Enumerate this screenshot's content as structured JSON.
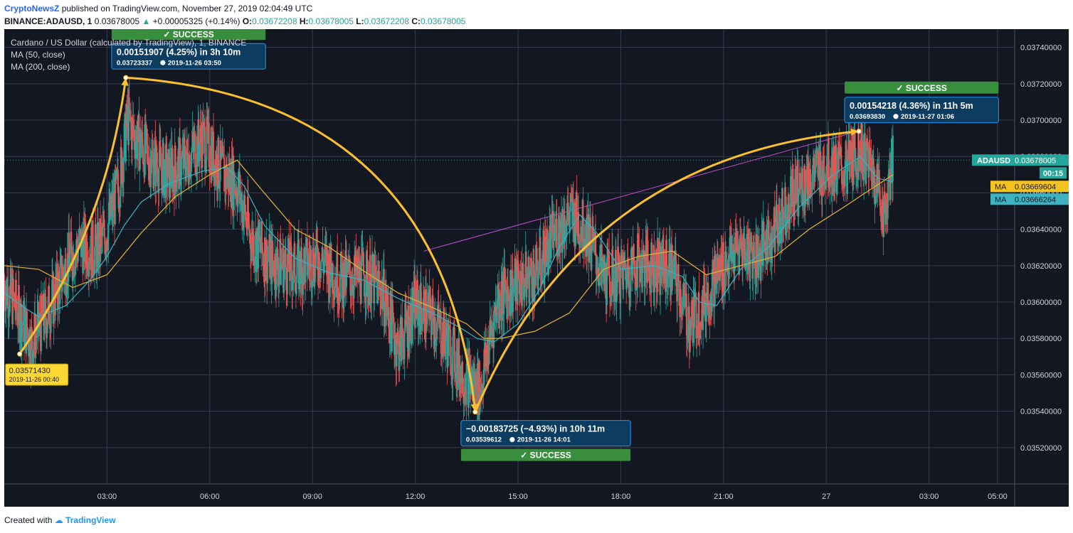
{
  "header": {
    "author": "CryptoNewsZ",
    "published_text": "published on TradingView.com, November 27, 2019 02:04:49 UTC",
    "symbol": "BINANCE:ADAUSD, 1",
    "last_price": "0.03678005",
    "change_arrow": "▲",
    "change": "+0.00005325 (+0.14%)",
    "o_label": "O:",
    "o": "0.03672208",
    "h_label": "H:",
    "h": "0.03678005",
    "l_label": "L:",
    "l": "0.03672208",
    "c_label": "C:",
    "c": "0.03678005"
  },
  "legend": {
    "title": "Cardano / US Dollar (calculated by TradingView), 1, BINANCE",
    "ma50": "MA (50, close)",
    "ma200": "MA (200, close)"
  },
  "chart_data": {
    "type": "candlestick",
    "y_ticks": [
      "0.03520000",
      "0.03540000",
      "0.03560000",
      "0.03580000",
      "0.03600000",
      "0.03620000",
      "0.03640000",
      "0.03660000",
      "0.03680000",
      "0.03700000",
      "0.03720000",
      "0.03740000"
    ],
    "ylim": [
      0.035,
      0.0375
    ],
    "x_ticks": [
      "03:00",
      "06:00",
      "09:00",
      "12:00",
      "15:00",
      "18:00",
      "21:00",
      "27",
      "03:00",
      "05:00"
    ],
    "x_hours": [
      3,
      6,
      9,
      12,
      15,
      18,
      21,
      24,
      27,
      29
    ],
    "xlim": [
      0.0,
      29.5
    ],
    "last_candle_hour": 25.95,
    "price_path": [
      [
        0.0,
        0.0361
      ],
      [
        0.4,
        0.03595
      ],
      [
        0.8,
        0.03578
      ],
      [
        1.0,
        0.03585
      ],
      [
        1.4,
        0.036
      ],
      [
        1.8,
        0.0362
      ],
      [
        2.2,
        0.03632
      ],
      [
        2.7,
        0.03628
      ],
      [
        3.0,
        0.0364
      ],
      [
        3.35,
        0.03665
      ],
      [
        3.6,
        0.037
      ],
      [
        3.85,
        0.0369
      ],
      [
        4.2,
        0.0368
      ],
      [
        4.8,
        0.0367
      ],
      [
        5.3,
        0.03678
      ],
      [
        5.8,
        0.0369
      ],
      [
        6.4,
        0.0367
      ],
      [
        6.8,
        0.03665
      ],
      [
        7.2,
        0.03635
      ],
      [
        7.8,
        0.03622
      ],
      [
        8.5,
        0.03618
      ],
      [
        9.2,
        0.03625
      ],
      [
        9.8,
        0.03612
      ],
      [
        10.5,
        0.03615
      ],
      [
        11.0,
        0.03608
      ],
      [
        11.5,
        0.03575
      ],
      [
        12.0,
        0.03598
      ],
      [
        12.5,
        0.03592
      ],
      [
        13.0,
        0.03576
      ],
      [
        13.4,
        0.0356
      ],
      [
        13.9,
        0.03552
      ],
      [
        14.4,
        0.03602
      ],
      [
        15.0,
        0.0361
      ],
      [
        15.5,
        0.03615
      ],
      [
        16.0,
        0.03635
      ],
      [
        16.5,
        0.03648
      ],
      [
        17.0,
        0.0364
      ],
      [
        17.5,
        0.03612
      ],
      [
        18.0,
        0.03615
      ],
      [
        18.5,
        0.03622
      ],
      [
        19.0,
        0.0362
      ],
      [
        19.5,
        0.03618
      ],
      [
        20.0,
        0.03588
      ],
      [
        20.4,
        0.03598
      ],
      [
        20.8,
        0.03615
      ],
      [
        21.5,
        0.0363
      ],
      [
        22.0,
        0.03625
      ],
      [
        22.5,
        0.0364
      ],
      [
        23.0,
        0.0366
      ],
      [
        23.5,
        0.03668
      ],
      [
        24.0,
        0.03675
      ],
      [
        24.5,
        0.03672
      ],
      [
        25.0,
        0.03685
      ],
      [
        25.4,
        0.0367
      ],
      [
        25.7,
        0.03648
      ],
      [
        25.95,
        0.03678
      ]
    ],
    "ma50_path": [
      [
        0.0,
        0.03605
      ],
      [
        0.5,
        0.03598
      ],
      [
        1.0,
        0.03592
      ],
      [
        1.8,
        0.03598
      ],
      [
        2.5,
        0.03612
      ],
      [
        3.0,
        0.03625
      ],
      [
        3.5,
        0.03642
      ],
      [
        4.0,
        0.03655
      ],
      [
        4.8,
        0.03665
      ],
      [
        5.8,
        0.03672
      ],
      [
        6.5,
        0.03674
      ],
      [
        7.0,
        0.03664
      ],
      [
        7.6,
        0.03642
      ],
      [
        8.5,
        0.03624
      ],
      [
        9.5,
        0.03616
      ],
      [
        10.5,
        0.03612
      ],
      [
        11.5,
        0.03602
      ],
      [
        12.5,
        0.03594
      ],
      [
        13.3,
        0.03586
      ],
      [
        13.8,
        0.0358
      ],
      [
        14.3,
        0.03578
      ],
      [
        15.0,
        0.03588
      ],
      [
        15.6,
        0.03606
      ],
      [
        16.2,
        0.0363
      ],
      [
        16.8,
        0.03648
      ],
      [
        17.3,
        0.03638
      ],
      [
        18.0,
        0.03618
      ],
      [
        19.0,
        0.0362
      ],
      [
        19.8,
        0.03614
      ],
      [
        20.3,
        0.036
      ],
      [
        20.8,
        0.03598
      ],
      [
        21.5,
        0.03618
      ],
      [
        22.3,
        0.0363
      ],
      [
        23.2,
        0.03652
      ],
      [
        24.2,
        0.0367
      ],
      [
        25.0,
        0.0368
      ],
      [
        25.5,
        0.03668
      ],
      [
        25.95,
        0.03666
      ]
    ],
    "ma200_path": [
      [
        0.0,
        0.0362
      ],
      [
        1.0,
        0.03618
      ],
      [
        2.0,
        0.03608
      ],
      [
        3.0,
        0.03615
      ],
      [
        4.0,
        0.03638
      ],
      [
        5.0,
        0.03658
      ],
      [
        6.0,
        0.0367
      ],
      [
        6.8,
        0.03678
      ],
      [
        7.5,
        0.03662
      ],
      [
        8.5,
        0.0364
      ],
      [
        9.5,
        0.0363
      ],
      [
        10.5,
        0.03617
      ],
      [
        11.5,
        0.03605
      ],
      [
        12.5,
        0.03597
      ],
      [
        13.5,
        0.03588
      ],
      [
        14.0,
        0.0358
      ],
      [
        14.5,
        0.0358
      ],
      [
        15.5,
        0.03584
      ],
      [
        16.5,
        0.03594
      ],
      [
        17.5,
        0.03618
      ],
      [
        18.5,
        0.03625
      ],
      [
        19.5,
        0.03628
      ],
      [
        20.5,
        0.03615
      ],
      [
        21.5,
        0.0362
      ],
      [
        22.5,
        0.03625
      ],
      [
        23.5,
        0.0364
      ],
      [
        24.5,
        0.03652
      ],
      [
        25.3,
        0.03662
      ],
      [
        25.95,
        0.0367
      ]
    ],
    "annotations": [
      {
        "from": [
          0.45,
          0.0357143
        ],
        "to": [
          3.55,
          0.03723337
        ],
        "text": "0.00151907 (4.25%) in 3h 10m",
        "subtext": "0.03723337",
        "time": "2019-11-26  03:50",
        "result": "✓ SUCCESS",
        "result_pos": "above"
      },
      {
        "from": [
          3.55,
          0.03723337
        ],
        "to": [
          13.75,
          0.03539612
        ],
        "text": "−0.00183725 (−4.93%) in 10h 11m",
        "subtext": "0.03539612",
        "time": "2019-11-26  14:01",
        "result": "✓ SUCCESS",
        "result_pos": "below"
      },
      {
        "from": [
          13.75,
          0.03539612
        ],
        "to": [
          24.95,
          0.0369383
        ],
        "text": "0.00154218 (4.36%) in 11h 5m",
        "subtext": "0.03693830",
        "time": "2019-11-27  01:06",
        "result": "✓ SUCCESS",
        "result_pos": "above"
      }
    ],
    "low_marker": {
      "value": "0.03571430",
      "time": "2019-11-26 00:40"
    },
    "trend_line": [
      [
        12.25,
        0.03628
      ],
      [
        24.95,
        0.03694
      ]
    ],
    "price_labels": [
      {
        "name": "ADAUSD",
        "value": "0.03678005",
        "level": 0.03678005,
        "color": "#26a69a"
      },
      {
        "name": "",
        "value": "00:15",
        "level": null,
        "color": "#26a69a"
      },
      {
        "name": "MA",
        "value": "0.03669604",
        "level": 0.03669604,
        "color": "#f5c320"
      },
      {
        "name": "MA",
        "value": "0.03666264",
        "level": 0.03666264,
        "color": "#3bb3c3"
      }
    ],
    "colors": {
      "background": "#131722",
      "up": "#26a69a",
      "down": "#ef5350",
      "ma50": "#3bb3c3",
      "ma200": "#e5b630",
      "arrow": "#fbc02d",
      "trend": "#c44bd0",
      "box": "#0d3c61",
      "box_border": "#2196f3",
      "success": "#388e3c",
      "grid": "#363c4e",
      "axis_text": "#d1d4dc"
    }
  },
  "footer": {
    "created": "Created with",
    "brand": "TradingView"
  }
}
